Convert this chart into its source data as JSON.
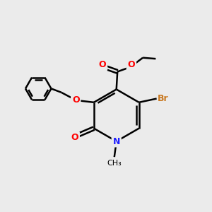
{
  "bg_color": "#ebebeb",
  "bond_color": "#000000",
  "bond_width": 1.8,
  "figsize": [
    3.0,
    3.0
  ],
  "dpi": 100,
  "colors": {
    "N": "#2020ff",
    "O": "#ff0000",
    "Br": "#c87820"
  },
  "xlim": [
    0,
    10
  ],
  "ylim": [
    0,
    10
  ]
}
